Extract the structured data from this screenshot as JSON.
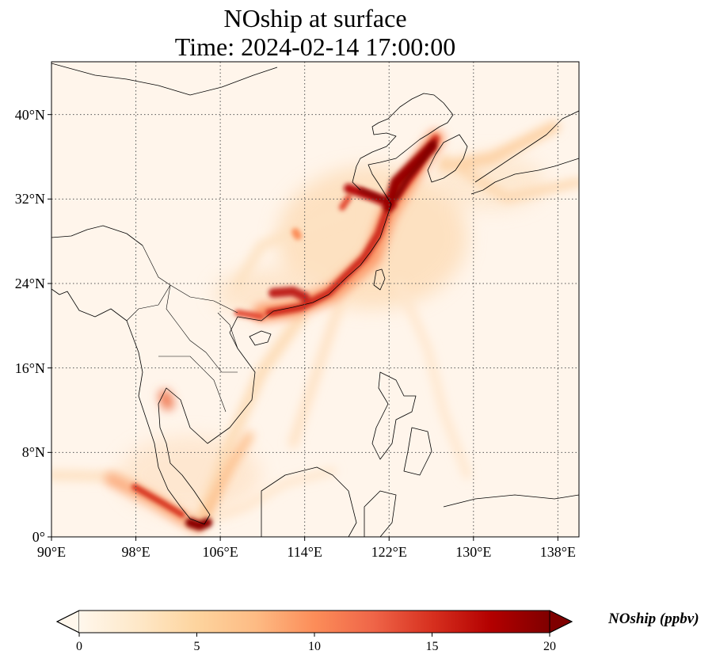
{
  "title": {
    "line1": "NOship at surface",
    "line2": "Time: 2024-02-14 17:00:00"
  },
  "map": {
    "projection": "PlateCarree",
    "variable": "NOship",
    "level": "surface",
    "lon_range": [
      90,
      140
    ],
    "lat_range": [
      0,
      45
    ],
    "gridlines": "dotted gray",
    "x_ticks": [
      {
        "value": 90,
        "label": "90°E"
      },
      {
        "value": 98,
        "label": "98°E"
      },
      {
        "value": 106,
        "label": "106°E"
      },
      {
        "value": 114,
        "label": "114°E"
      },
      {
        "value": 122,
        "label": "122°E"
      },
      {
        "value": 130,
        "label": "130°E"
      },
      {
        "value": 138,
        "label": "138°E"
      }
    ],
    "y_ticks": [
      {
        "value": 0,
        "label": "0°"
      },
      {
        "value": 8,
        "label": "8°N"
      },
      {
        "value": 16,
        "label": "16°N"
      },
      {
        "value": 24,
        "label": "24°N"
      },
      {
        "value": 32,
        "label": "32°N"
      },
      {
        "value": 40,
        "label": "40°N"
      }
    ],
    "colors": {
      "background_low": "#fff5eb",
      "colormap": "OrRd"
    }
  },
  "colorbar": {
    "label": "NOship (ppbv)",
    "min": 0,
    "max": 20,
    "extend": "both",
    "ticks": [
      {
        "value": 0,
        "label": "0"
      },
      {
        "value": 5,
        "label": "5"
      },
      {
        "value": 10,
        "label": "10"
      },
      {
        "value": 15,
        "label": "15"
      },
      {
        "value": 20,
        "label": "20"
      }
    ],
    "stops": [
      "#fff7ec",
      "#fee8c8",
      "#fdd49e",
      "#fdbb84",
      "#fc8d59",
      "#ef6548",
      "#d7301f",
      "#b30000",
      "#7f0000"
    ]
  }
}
